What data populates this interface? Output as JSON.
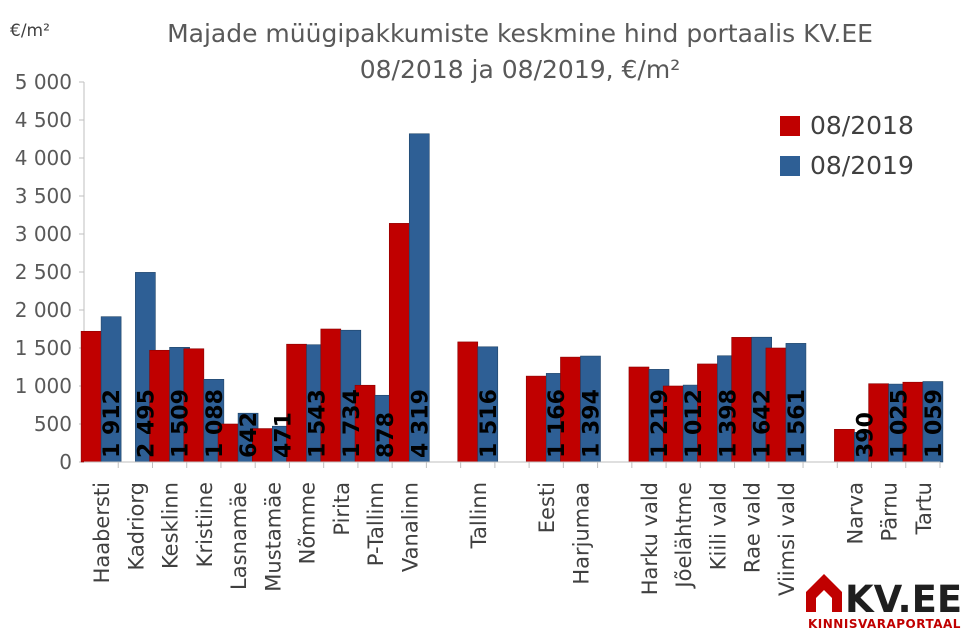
{
  "chart_data": {
    "type": "bar",
    "title_lines": [
      "Majade müügipakkumiste keskmine hind portaalis KV.EE",
      "08/2018 ja 08/2019, €/m²"
    ],
    "unit_label": "€/m²",
    "ylim": [
      0,
      5000
    ],
    "yticks": [
      0,
      500,
      1000,
      1500,
      2000,
      2500,
      3000,
      3500,
      4000,
      4500,
      5000
    ],
    "ytick_labels": [
      "0",
      "500",
      "1 000",
      "1 500",
      "2 000",
      "2 500",
      "3 000",
      "3 500",
      "4 000",
      "4 500",
      "5 000"
    ],
    "legend_position": "top-right",
    "grid": false,
    "categories": [
      "Haabersti",
      "Kadriorg",
      "Kesklinn",
      "Kristiine",
      "Lasnamäe",
      "Mustamäe",
      "Nõmme",
      "Pirita",
      "P-Tallinn",
      "Vanalinn",
      "",
      "Tallinn",
      "",
      "Eesti",
      "Harjumaa",
      "",
      "Harku vald",
      "Jõelähtme",
      "Kiili vald",
      "Rae vald",
      "Viimsi vald",
      "",
      "Narva",
      "Pärnu",
      "Tartu"
    ],
    "series": [
      {
        "name": "08/2018",
        "color": "#c00000",
        "values": [
          1720,
          null,
          1470,
          1490,
          500,
          440,
          1550,
          1750,
          1010,
          3140,
          null,
          1580,
          null,
          1130,
          1380,
          null,
          1250,
          1000,
          1290,
          1640,
          1500,
          null,
          430,
          1030,
          1050
        ]
      },
      {
        "name": "08/2019",
        "color": "#2e5f95",
        "values": [
          1912,
          2495,
          1509,
          1088,
          642,
          471,
          1543,
          1734,
          878,
          4319,
          null,
          1516,
          null,
          1166,
          1394,
          null,
          1219,
          1012,
          1398,
          1642,
          1561,
          null,
          390,
          1025,
          1059
        ]
      }
    ],
    "data_labels": [
      "1 912",
      "2 495",
      "1 509",
      "1 088",
      "642",
      "471",
      "1 543",
      "1 734",
      "878",
      "4 319",
      "",
      "1 516",
      "",
      "1 166",
      "1 394",
      "",
      "1 219",
      "1 012",
      "1 398",
      "1 642",
      "1 561",
      "",
      "390",
      "1 025",
      "1 059"
    ]
  },
  "logo": {
    "main": "KV.EE",
    "sub": "KINNISVARAPORTAAL",
    "color": "#c00000"
  }
}
